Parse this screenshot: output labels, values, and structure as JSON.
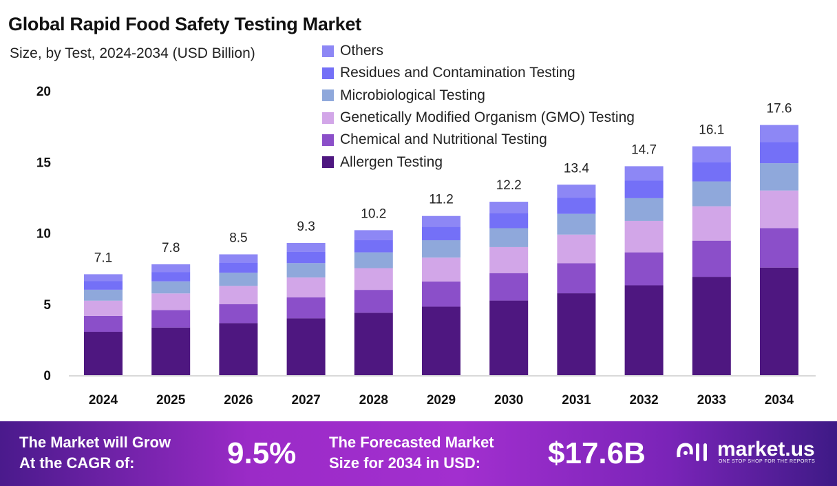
{
  "title": "Global Rapid Food Safety Testing Market",
  "subtitle": "Size, by Test, 2024-2034 (USD Billion)",
  "chart_data": {
    "type": "bar",
    "stacked": true,
    "categories": [
      "2024",
      "2025",
      "2026",
      "2027",
      "2028",
      "2029",
      "2030",
      "2031",
      "2032",
      "2033",
      "2034"
    ],
    "totals": [
      7.1,
      7.8,
      8.5,
      9.3,
      10.2,
      11.2,
      12.2,
      13.4,
      14.7,
      16.1,
      17.6
    ],
    "total_labels": [
      "7.1",
      "7.8",
      "8.5",
      "9.3",
      "10.2",
      "11.2",
      "12.2",
      "13.4",
      "14.7",
      "16.1",
      "17.6"
    ],
    "series": [
      {
        "name": "Allergen Testing",
        "color": "#4e1780",
        "values": [
          3.05,
          3.35,
          3.66,
          4.0,
          4.39,
          4.82,
          5.25,
          5.76,
          6.32,
          6.92,
          7.57
        ]
      },
      {
        "name": "Chemical and Nutritional Testing",
        "color": "#8b4fc9",
        "values": [
          1.12,
          1.23,
          1.34,
          1.47,
          1.61,
          1.77,
          1.93,
          2.12,
          2.32,
          2.54,
          2.78
        ]
      },
      {
        "name": "Genetically Modified Organism (GMO) Testing",
        "color": "#d2a6e8",
        "values": [
          1.07,
          1.17,
          1.28,
          1.4,
          1.53,
          1.68,
          1.83,
          2.01,
          2.21,
          2.42,
          2.64
        ]
      },
      {
        "name": "Microbiological Testing",
        "color": "#8fa8db",
        "values": [
          0.77,
          0.85,
          0.93,
          1.01,
          1.11,
          1.22,
          1.33,
          1.46,
          1.6,
          1.75,
          1.92
        ]
      },
      {
        "name": "Residues and Contamination Testing",
        "color": "#7470f7",
        "values": [
          0.6,
          0.66,
          0.72,
          0.79,
          0.87,
          0.95,
          1.04,
          1.14,
          1.25,
          1.37,
          1.5
        ]
      },
      {
        "name": "Others",
        "color": "#8d87f5",
        "values": [
          0.49,
          0.54,
          0.57,
          0.63,
          0.69,
          0.76,
          0.82,
          0.91,
          1.0,
          1.1,
          1.19
        ]
      }
    ],
    "yticks": [
      "0",
      "5",
      "10",
      "15",
      "20"
    ],
    "ylim": [
      0,
      20
    ],
    "grid": false,
    "legend_position": "top-center"
  },
  "footer": {
    "cagr_label_1": "The Market will Grow",
    "cagr_label_2": "At the CAGR of:",
    "cagr_value": "9.5%",
    "forecast_label_1": "The Forecasted Market",
    "forecast_label_2": "Size for 2034 in USD:",
    "forecast_value": "$17.6B",
    "logo_name": "market.us",
    "logo_tagline": "ONE STOP SHOP FOR THE REPORTS"
  }
}
